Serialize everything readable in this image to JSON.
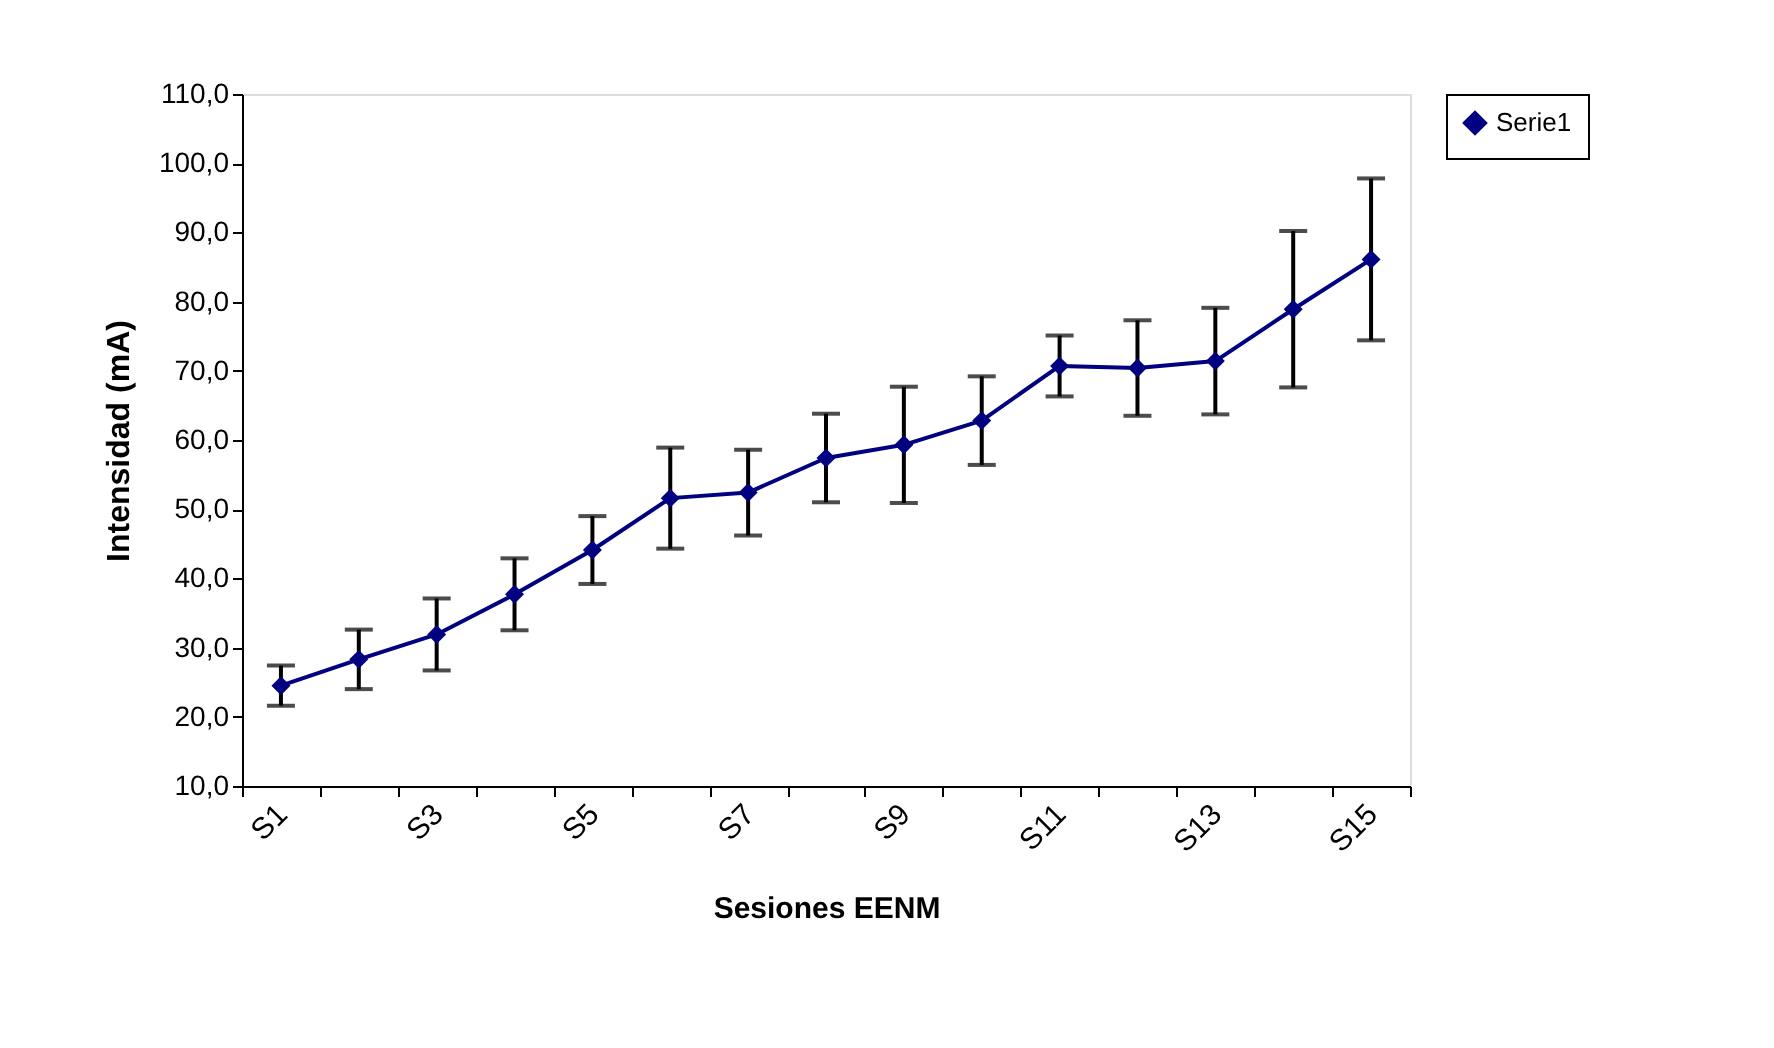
{
  "chart_data": {
    "type": "line",
    "xlabel": "Sesiones EENM",
    "ylabel": "Intensidad (mA)",
    "categories": [
      "S1",
      null,
      "S3",
      null,
      "S5",
      null,
      "S7",
      null,
      "S9",
      null,
      "S11",
      null,
      "S13",
      null,
      "S15"
    ],
    "series": [
      {
        "name": "Serie1",
        "color": "#000080",
        "values": [
          24.5,
          28.3,
          31.9,
          37.7,
          44.1,
          51.6,
          52.4,
          57.4,
          59.3,
          62.8,
          70.7,
          70.4,
          71.4,
          78.9,
          86.1
        ],
        "errors": [
          2.9,
          4.3,
          5.2,
          5.2,
          4.9,
          7.3,
          6.2,
          6.4,
          8.4,
          6.4,
          4.4,
          6.9,
          7.7,
          11.3,
          11.7
        ]
      }
    ],
    "ylim": [
      10,
      110
    ],
    "yticks": [
      {
        "value": 10,
        "label": "10,0"
      },
      {
        "value": 20,
        "label": "20,0"
      },
      {
        "value": 30,
        "label": "30,0"
      },
      {
        "value": 40,
        "label": "40,0"
      },
      {
        "value": 50,
        "label": "50,0"
      },
      {
        "value": 60,
        "label": "60,0"
      },
      {
        "value": 70,
        "label": "70,0"
      },
      {
        "value": 80,
        "label": "80,0"
      },
      {
        "value": 90,
        "label": "90,0"
      },
      {
        "value": 100,
        "label": "100,0"
      },
      {
        "value": 110,
        "label": "110,0"
      }
    ],
    "marker": "diamond",
    "line_style": "solid",
    "grid": false,
    "legend": "right"
  }
}
